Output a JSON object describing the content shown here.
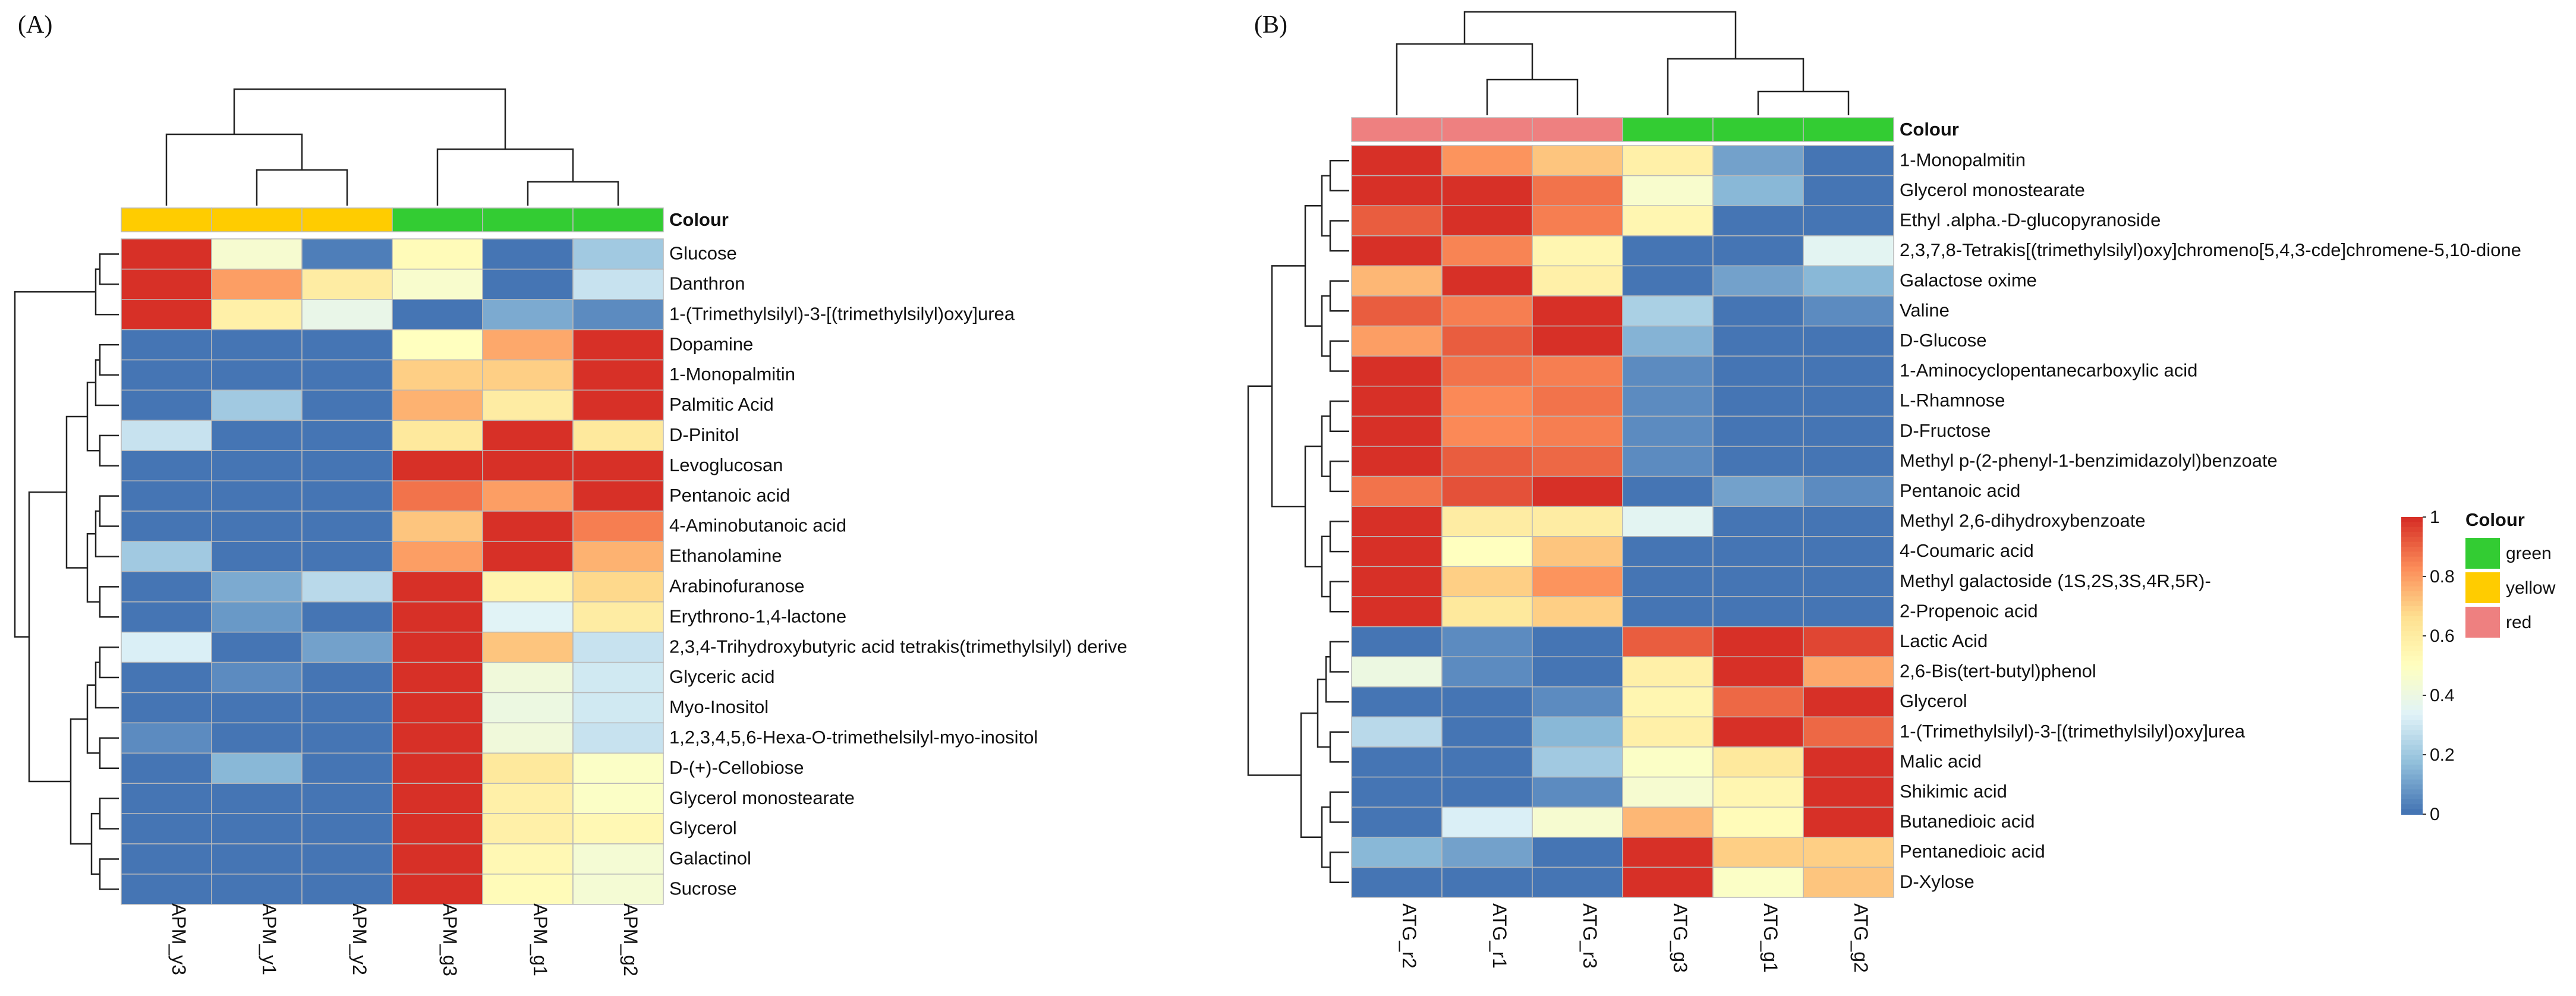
{
  "chart_data": [
    {
      "type": "heatmap",
      "panel_label": "(A)",
      "columns": [
        "APM_y3",
        "APM_y1",
        "APM_y2",
        "APM_g3",
        "APM_g1",
        "APM_g2"
      ],
      "column_groups": [
        "yellow",
        "yellow",
        "yellow",
        "green",
        "green",
        "green"
      ],
      "annotation_label": "Colour",
      "rows": [
        "Glucose",
        "Danthron",
        "1-(Trimethylsilyl)-3-[(trimethylsilyl)oxy]urea",
        "Dopamine",
        "1-Monopalmitin",
        "Palmitic Acid",
        "D-Pinitol",
        "Levoglucosan",
        "Pentanoic acid",
        "4-Aminobutanoic acid",
        "Ethanolamine",
        "Arabinofuranose",
        "Erythrono-1,4-lactone",
        "2,3,4-Trihydroxybutyric acid tetrakis(trimethylsilyl) derive",
        "Glyceric acid",
        "Myo-Inositol",
        "1,2,3,4,5,6-Hexa-O-trimethelsilyl-myo-inositol",
        "D-(+)-Cellobiose",
        "Glycerol monostearate",
        "Glycerol",
        "Galactinol",
        "Sucrose"
      ],
      "values": [
        [
          1.0,
          0.45,
          0.02,
          0.52,
          0.0,
          0.2
        ],
        [
          1.0,
          0.8,
          0.6,
          0.46,
          0.0,
          0.28
        ],
        [
          1.0,
          0.58,
          0.38,
          0.0,
          0.12,
          0.05
        ],
        [
          0.0,
          0.0,
          0.0,
          0.5,
          0.78,
          1.0
        ],
        [
          0.0,
          0.0,
          0.0,
          0.7,
          0.7,
          1.0
        ],
        [
          0.0,
          0.2,
          0.0,
          0.76,
          0.6,
          1.0
        ],
        [
          0.28,
          0.0,
          0.0,
          0.62,
          1.0,
          0.62
        ],
        [
          0.0,
          0.0,
          0.0,
          1.0,
          1.0,
          1.0
        ],
        [
          0.0,
          0.0,
          0.0,
          0.88,
          0.8,
          1.0
        ],
        [
          0.0,
          0.0,
          0.0,
          0.72,
          1.0,
          0.86
        ],
        [
          0.2,
          0.0,
          0.0,
          0.8,
          1.0,
          0.76
        ],
        [
          0.0,
          0.12,
          0.25,
          1.0,
          0.56,
          0.68
        ],
        [
          0.0,
          0.08,
          0.0,
          1.0,
          0.34,
          0.6
        ],
        [
          0.32,
          0.0,
          0.1,
          1.0,
          0.72,
          0.28
        ],
        [
          0.0,
          0.05,
          0.0,
          1.0,
          0.42,
          0.3
        ],
        [
          0.0,
          0.0,
          0.0,
          1.0,
          0.4,
          0.3
        ],
        [
          0.05,
          0.0,
          0.0,
          1.0,
          0.42,
          0.28
        ],
        [
          0.0,
          0.15,
          0.0,
          1.0,
          0.62,
          0.48
        ],
        [
          0.0,
          0.0,
          0.0,
          1.0,
          0.58,
          0.48
        ],
        [
          0.0,
          0.0,
          0.0,
          1.0,
          0.58,
          0.54
        ],
        [
          0.0,
          0.0,
          0.0,
          1.0,
          0.54,
          0.44
        ],
        [
          0.0,
          0.0,
          0.0,
          1.0,
          0.52,
          0.44
        ]
      ]
    },
    {
      "type": "heatmap",
      "panel_label": "(B)",
      "columns": [
        "ATG_r2",
        "ATG_r1",
        "ATG_r3",
        "ATG_g3",
        "ATG_g1",
        "ATG_g2"
      ],
      "column_groups": [
        "red",
        "red",
        "red",
        "green",
        "green",
        "green"
      ],
      "annotation_label": "Colour",
      "rows": [
        "1-Monopalmitin",
        "Glycerol monostearate",
        "Ethyl .alpha.-D-glucopyranoside",
        "2,3,7,8-Tetrakis[(trimethylsilyl)oxy]chromeno[5,4,3-cde]chromene-5,10-dione",
        "Galactose oxime",
        "Valine",
        "D-Glucose",
        "1-Aminocyclopentanecarboxylic acid",
        "L-Rhamnose",
        "D-Fructose",
        "Methyl p-(2-phenyl-1-benzimidazolyl)benzoate",
        "Pentanoic acid",
        "Methyl 2,6-dihydroxybenzoate",
        "4-Coumaric acid",
        "Methyl galactoside (1S,2S,3S,4R,5R)-",
        "2-Propenoic acid",
        "Lactic Acid",
        "2,6-Bis(tert-butyl)phenol",
        "Glycerol",
        "1-(Trimethylsilyl)-3-[(trimethylsilyl)oxy]urea",
        "Malic acid",
        "Shikimic acid",
        "Butanedioic acid",
        "Pentanedioic acid",
        "D-Xylose"
      ],
      "values": [
        [
          1.0,
          0.82,
          0.72,
          0.58,
          0.1,
          0.0
        ],
        [
          1.0,
          1.0,
          0.88,
          0.46,
          0.15,
          0.0
        ],
        [
          0.92,
          1.0,
          0.86,
          0.55,
          0.0,
          0.0
        ],
        [
          1.0,
          0.85,
          0.55,
          0.0,
          0.0,
          0.35
        ],
        [
          0.75,
          1.0,
          0.58,
          0.0,
          0.1,
          0.15
        ],
        [
          0.92,
          0.86,
          1.0,
          0.22,
          0.0,
          0.05
        ],
        [
          0.8,
          0.92,
          1.0,
          0.14,
          0.0,
          0.0
        ],
        [
          1.0,
          0.88,
          0.86,
          0.05,
          0.0,
          0.0
        ],
        [
          1.0,
          0.84,
          0.88,
          0.05,
          0.0,
          0.0
        ],
        [
          1.0,
          0.84,
          0.86,
          0.05,
          0.0,
          0.0
        ],
        [
          1.0,
          0.92,
          0.9,
          0.05,
          0.0,
          0.0
        ],
        [
          0.88,
          0.94,
          1.0,
          0.0,
          0.1,
          0.05
        ],
        [
          1.0,
          0.6,
          0.6,
          0.35,
          0.0,
          0.0
        ],
        [
          1.0,
          0.5,
          0.72,
          0.0,
          0.0,
          0.0
        ],
        [
          1.0,
          0.7,
          0.82,
          0.0,
          0.0,
          0.0
        ],
        [
          1.0,
          0.62,
          0.7,
          0.0,
          0.0,
          0.0
        ],
        [
          0.0,
          0.05,
          0.0,
          0.92,
          1.0,
          0.96
        ],
        [
          0.4,
          0.05,
          0.0,
          0.58,
          1.0,
          0.78
        ],
        [
          0.0,
          0.0,
          0.05,
          0.55,
          0.9,
          1.0
        ],
        [
          0.25,
          0.0,
          0.15,
          0.58,
          1.0,
          0.9
        ],
        [
          0.0,
          0.0,
          0.2,
          0.48,
          0.62,
          1.0
        ],
        [
          0.0,
          0.0,
          0.05,
          0.45,
          0.55,
          1.0
        ],
        [
          0.0,
          0.32,
          0.45,
          0.75,
          0.52,
          1.0
        ],
        [
          0.15,
          0.1,
          0.0,
          1.0,
          0.7,
          0.7
        ],
        [
          0.0,
          0.0,
          0.0,
          1.0,
          0.48,
          0.72
        ]
      ]
    }
  ],
  "colorbar": {
    "ticks": [
      "1",
      "0.8",
      "0.6",
      "0.4",
      "0.2",
      "0"
    ],
    "ramp": [
      "#4575b4",
      "#91bfdb",
      "#e0f3f8",
      "#ffffbf",
      "#fee090",
      "#fc8d59",
      "#d73027"
    ]
  },
  "legend": {
    "title": "Colour",
    "items": [
      {
        "label": "green",
        "color": "#33cc33"
      },
      {
        "label": "yellow",
        "color": "#ffcc00"
      },
      {
        "label": "red",
        "color": "#ee8080"
      }
    ]
  }
}
